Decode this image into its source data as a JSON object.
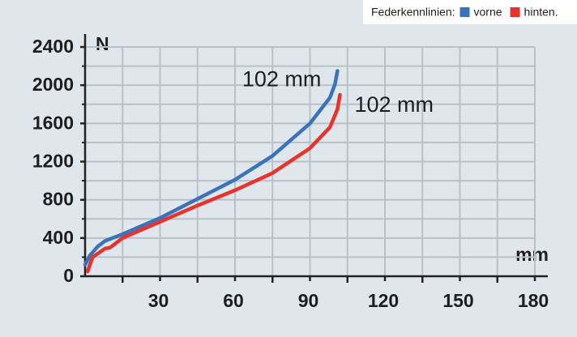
{
  "chart_data": {
    "type": "line",
    "legend_title": "Federkennlinien:",
    "x_label": "mm",
    "y_label": "N",
    "xlim": [
      0,
      180
    ],
    "ylim": [
      0,
      2400
    ],
    "xticks": [
      30,
      60,
      90,
      120,
      150,
      180
    ],
    "xminor": [
      15,
      45,
      75,
      105,
      135,
      165
    ],
    "yticks": [
      0,
      400,
      800,
      1200,
      1600,
      2000,
      2400
    ],
    "yminor": [
      200,
      600,
      1000,
      1400,
      1800,
      2200
    ],
    "grid": true,
    "series": [
      {
        "name": "vorne",
        "color": "#3a73ba",
        "x": [
          0,
          2,
          5,
          8,
          15,
          30,
          45,
          60,
          75,
          90,
          98,
          100,
          101
        ],
        "values": [
          120,
          220,
          310,
          370,
          440,
          610,
          810,
          1010,
          1260,
          1600,
          1870,
          2010,
          2150
        ]
      },
      {
        "name": "hinten.",
        "color": "#e8322c",
        "x": [
          1,
          3,
          8,
          10,
          15,
          30,
          45,
          60,
          75,
          90,
          98,
          101,
          102
        ],
        "values": [
          50,
          200,
          290,
          300,
          400,
          570,
          740,
          900,
          1080,
          1340,
          1560,
          1750,
          1900
        ]
      }
    ],
    "annotations": [
      "102 mm",
      "102 mm"
    ]
  }
}
